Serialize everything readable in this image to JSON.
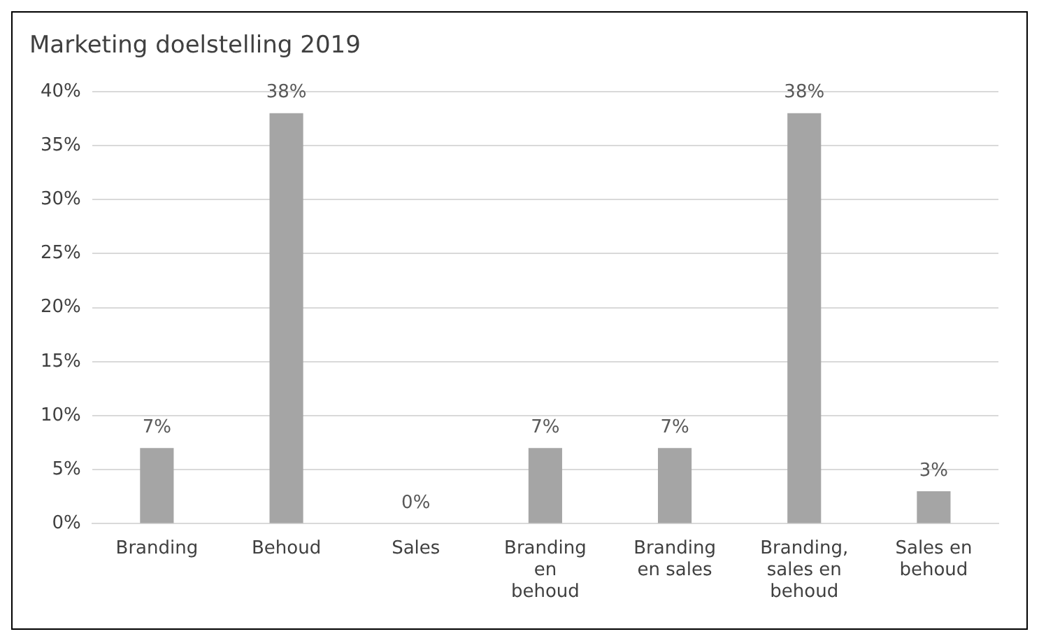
{
  "chart_data": {
    "type": "bar",
    "title": "Marketing doelstelling 2019",
    "categories": [
      "Branding",
      "Behoud",
      "Sales",
      "Branding en behoud",
      "Branding en sales",
      "Branding, sales en behoud",
      "Sales en behoud"
    ],
    "values": [
      7,
      38,
      0,
      7,
      7,
      38,
      3
    ],
    "value_labels": [
      "7%",
      "38%",
      "0%",
      "7%",
      "7%",
      "38%",
      "3%"
    ],
    "color": "#a5a5a5",
    "ylim": [
      0,
      40
    ],
    "yticks": [
      {
        "value": 0,
        "label": "0%"
      },
      {
        "value": 5,
        "label": "5%"
      },
      {
        "value": 10,
        "label": "10%"
      },
      {
        "value": 15,
        "label": "15%"
      },
      {
        "value": 20,
        "label": "20%"
      },
      {
        "value": 25,
        "label": "25%"
      },
      {
        "value": 30,
        "label": "30%"
      },
      {
        "value": 35,
        "label": "35%"
      },
      {
        "value": 40,
        "label": "40%"
      }
    ],
    "grid": "y",
    "legend": false
  }
}
